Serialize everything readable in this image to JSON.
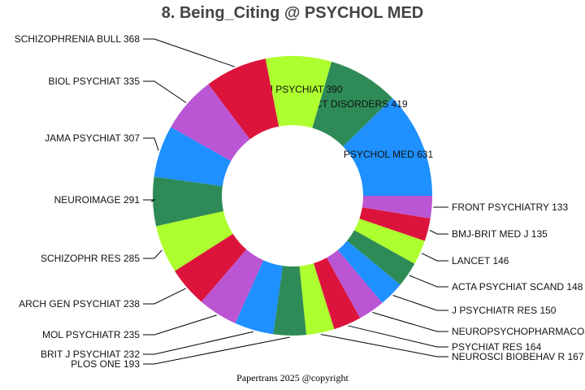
{
  "chart_data": {
    "type": "pie",
    "style": "donut",
    "title": "8. Being_Citing @ PSYCHOL MED",
    "footer": "Papertrans 2025 @copyright",
    "categories": [
      "PSYCHOL MED",
      "J AFFECT DISORDERS",
      "AM J PSYCHIAT",
      "SCHIZOPHRENIA BULL",
      "BIOL PSYCHIAT",
      "JAMA PSYCHIAT",
      "NEUROIMAGE",
      "SCHIZOPHR RES",
      "ARCH GEN PSYCHIAT",
      "MOL PSYCHIATR",
      "BRIT J PSYCHIAT",
      "PLOS ONE",
      "NEUROSCI BIOBEHAV R",
      "PSYCHIAT RES",
      "NEUROPSYCHOPHARMACO",
      "J PSYCHIATR RES",
      "ACTA PSYCHIAT SCAND",
      "LANCET",
      "BMJ-BRIT MED J",
      "FRONT PSYCHIATRY"
    ],
    "values": [
      631,
      419,
      390,
      368,
      335,
      307,
      291,
      285,
      238,
      235,
      232,
      193,
      167,
      164,
      157,
      150,
      148,
      146,
      135,
      133
    ],
    "labels": [
      "PSYCHOL MED 631",
      "J AFFECT DISORDERS 419",
      "AM J PSYCHIAT 390",
      "SCHIZOPHRENIA BULL 368",
      "BIOL PSYCHIAT 335",
      "JAMA PSYCHIAT 307",
      "NEUROIMAGE 291",
      "SCHIZOPHR RES 285",
      "ARCH GEN PSYCHIAT 238",
      "MOL PSYCHIATR 235",
      "BRIT J PSYCHIAT 232",
      "PLOS ONE 193",
      "NEUROSCI BIOBEHAV R 167",
      "PSYCHIAT RES 164",
      "NEUROPSYCHOPHARMACO",
      "J PSYCHIATR RES 150",
      "ACTA PSYCHIAT SCAND 148",
      "LANCET 146",
      "BMJ-BRIT MED J 135",
      "FRONT PSYCHIATRY 133"
    ],
    "colors": [
      "#1e90ff",
      "#2e8b57",
      "#adff2f",
      "#dc143c",
      "#ba55d3"
    ],
    "start": "east, counterclockwise",
    "legend": "none"
  }
}
